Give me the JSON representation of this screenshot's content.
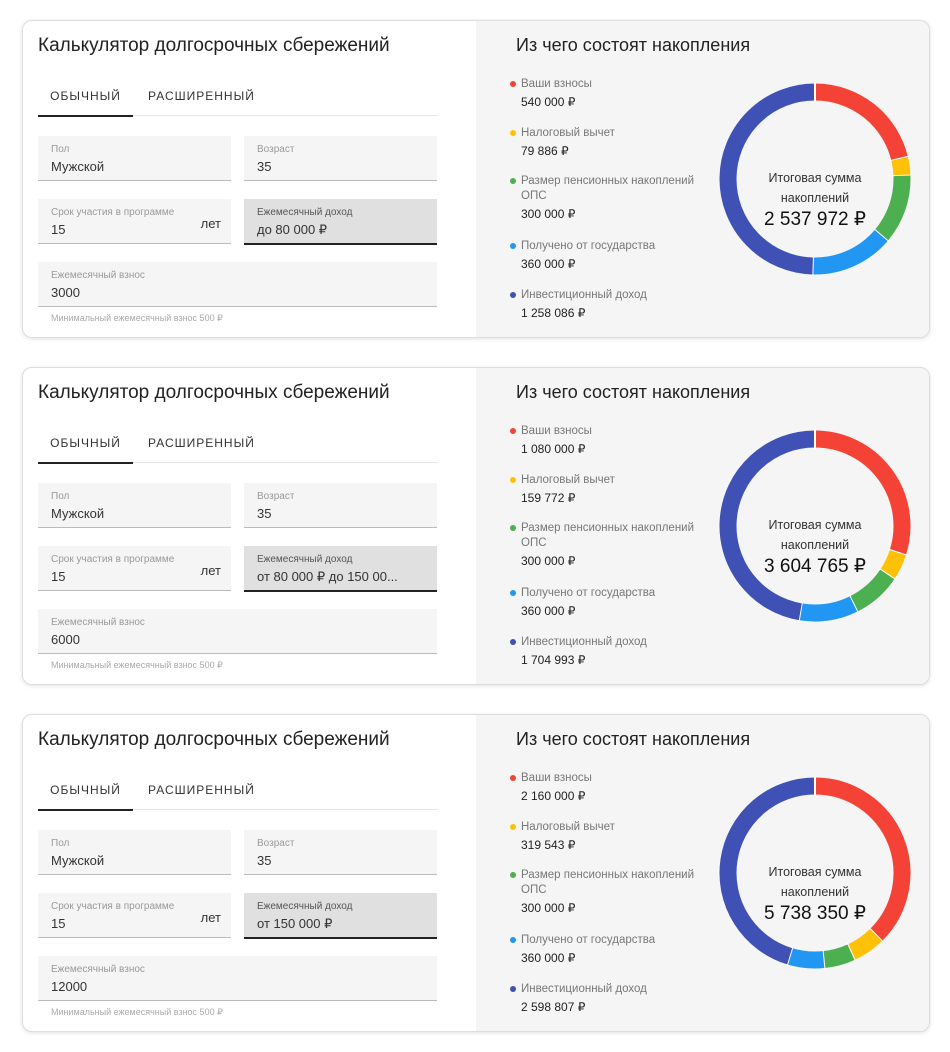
{
  "colors": {
    "contrib": "#f44336",
    "tax": "#ffc107",
    "ops": "#4caf50",
    "state": "#2196f3",
    "invest": "#3f51b5"
  },
  "cards": [
    {
      "title": "Калькулятор долгосрочных сбережений",
      "tabs": [
        "ОБЫЧНЫЙ",
        "РАСШИРЕННЫЙ"
      ],
      "fields": {
        "gender_label": "Пол",
        "gender": "Мужской",
        "age_label": "Возраст",
        "age": "35",
        "term_label": "Срок участия в программе",
        "term": "15",
        "term_unit": "лет",
        "income_label": "Ежемесячный доход",
        "income": "до 80 000 ₽",
        "payment_label": "Ежемесячный взнос",
        "payment": "3000"
      },
      "hint": "Минимальный ежемесячный взнос 500 ₽",
      "right_title": "Из чего состоят накопления",
      "legend": [
        {
          "key": "contrib",
          "label": "Ваши взносы",
          "value": "540 000 ₽",
          "amount": 540000
        },
        {
          "key": "tax",
          "label": "Налоговый вычет",
          "value": "79 886 ₽",
          "amount": 79886
        },
        {
          "key": "ops",
          "label": "Размер пенсионных накоплений ОПС",
          "value": "300 000 ₽",
          "amount": 300000
        },
        {
          "key": "state",
          "label": "Получено от государства",
          "value": "360 000 ₽",
          "amount": 360000
        },
        {
          "key": "invest",
          "label": "Инвестиционный доход",
          "value": "1 258 086 ₽",
          "amount": 1258086
        }
      ],
      "total_label": "Итоговая сумма накоплений",
      "total": "2 537 972 ₽"
    },
    {
      "title": "Калькулятор долгосрочных сбережений",
      "tabs": [
        "ОБЫЧНЫЙ",
        "РАСШИРЕННЫЙ"
      ],
      "fields": {
        "gender_label": "Пол",
        "gender": "Мужской",
        "age_label": "Возраст",
        "age": "35",
        "term_label": "Срок участия в программе",
        "term": "15",
        "term_unit": "лет",
        "income_label": "Ежемесячный доход",
        "income": "от 80 000 ₽ до 150 00...",
        "payment_label": "Ежемесячный взнос",
        "payment": "6000"
      },
      "hint": "Минимальный ежемесячный взнос 500 ₽",
      "right_title": "Из чего состоят накопления",
      "legend": [
        {
          "key": "contrib",
          "label": "Ваши взносы",
          "value": "1 080 000 ₽",
          "amount": 1080000
        },
        {
          "key": "tax",
          "label": "Налоговый вычет",
          "value": "159 772 ₽",
          "amount": 159772
        },
        {
          "key": "ops",
          "label": "Размер пенсионных накоплений ОПС",
          "value": "300 000 ₽",
          "amount": 300000
        },
        {
          "key": "state",
          "label": "Получено от государства",
          "value": "360 000 ₽",
          "amount": 360000
        },
        {
          "key": "invest",
          "label": "Инвестиционный доход",
          "value": "1 704 993 ₽",
          "amount": 1704993
        }
      ],
      "total_label": "Итоговая сумма накоплений",
      "total": "3 604 765 ₽"
    },
    {
      "title": "Калькулятор долгосрочных сбережений",
      "tabs": [
        "ОБЫЧНЫЙ",
        "РАСШИРЕННЫЙ"
      ],
      "fields": {
        "gender_label": "Пол",
        "gender": "Мужской",
        "age_label": "Возраст",
        "age": "35",
        "term_label": "Срок участия в программе",
        "term": "15",
        "term_unit": "лет",
        "income_label": "Ежемесячный доход",
        "income": "от 150 000 ₽",
        "payment_label": "Ежемесячный взнос",
        "payment": "12000"
      },
      "hint": "Минимальный ежемесячный взнос 500 ₽",
      "right_title": "Из чего состоят накопления",
      "legend": [
        {
          "key": "contrib",
          "label": "Ваши взносы",
          "value": "2 160 000 ₽",
          "amount": 2160000
        },
        {
          "key": "tax",
          "label": "Налоговый вычет",
          "value": "319 543 ₽",
          "amount": 319543
        },
        {
          "key": "ops",
          "label": "Размер пенсионных накоплений ОПС",
          "value": "300 000 ₽",
          "amount": 300000
        },
        {
          "key": "state",
          "label": "Получено от государства",
          "value": "360 000 ₽",
          "amount": 360000
        },
        {
          "key": "invest",
          "label": "Инвестиционный доход",
          "value": "2 598 807 ₽",
          "amount": 2598807
        }
      ],
      "total_label": "Итоговая сумма накоплений",
      "total": "5 738 350 ₽"
    }
  ]
}
